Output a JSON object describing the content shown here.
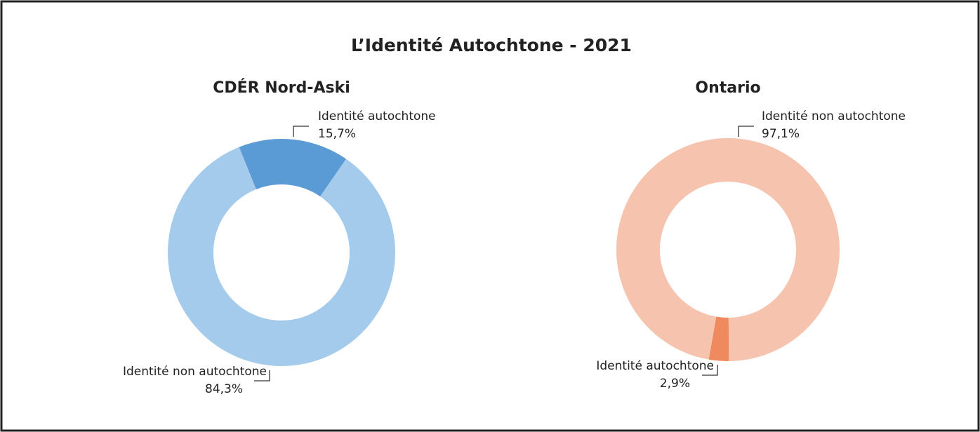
{
  "title": "L’Identité Autochtone - 2021",
  "chart_data": [
    {
      "type": "pie",
      "title": "CDÉR Nord-Aski",
      "categories": [
        "Identité autochtone",
        "Identité non autochtone"
      ],
      "values": [
        15.7,
        84.3
      ],
      "value_labels": [
        "15,7%",
        "84,3%"
      ],
      "colors": [
        "#5b9bd5",
        "#a5cbec"
      ]
    },
    {
      "type": "pie",
      "title": "Ontario",
      "categories": [
        "Identité autochtone",
        "Identité non autochtone"
      ],
      "values": [
        2.9,
        97.1
      ],
      "value_labels": [
        "2,9%",
        "97,1%"
      ],
      "colors": [
        "#ee8a5e",
        "#f6c4ae"
      ]
    }
  ]
}
